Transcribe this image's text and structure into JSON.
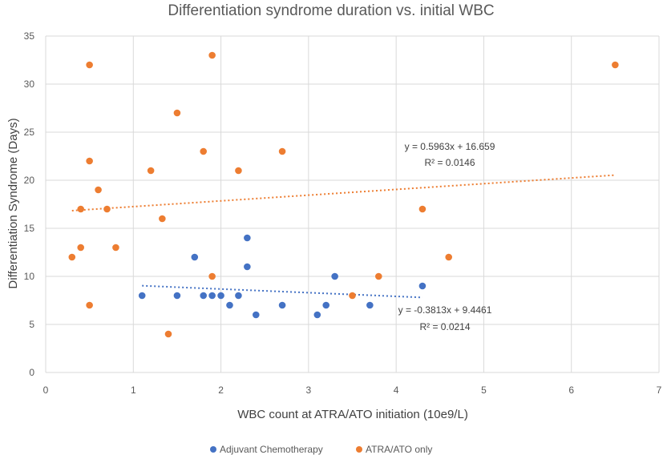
{
  "chart_data": {
    "type": "scatter",
    "title": "Differentiation syndrome duration vs. initial WBC",
    "xlabel": "WBC count  at ATRA/ATO initiation (10e9/L)",
    "ylabel": "Differentiation Syndrome  (Days)",
    "xlim": [
      0,
      7
    ],
    "ylim": [
      0,
      35
    ],
    "xticks": [
      "0",
      "1",
      "2",
      "3",
      "4",
      "5",
      "6",
      "7"
    ],
    "yticks": [
      "0",
      "5",
      "10",
      "15",
      "20",
      "25",
      "30",
      "35"
    ],
    "grid": "vertical and horizontal",
    "legend_position": "bottom",
    "series": [
      {
        "name": "Adjuvant Chemotherapy",
        "color": "#4472C4",
        "x": [
          1.1,
          1.5,
          1.7,
          1.8,
          1.9,
          2.0,
          2.1,
          2.2,
          2.3,
          2.3,
          2.4,
          2.7,
          3.1,
          3.2,
          3.3,
          3.7,
          4.3
        ],
        "y": [
          8,
          8,
          12,
          8,
          8,
          8,
          7,
          8,
          14,
          11,
          6,
          7,
          6,
          7,
          10,
          7,
          9
        ],
        "trendline": {
          "slope": -0.3813,
          "intercept": 9.4461,
          "x_range": [
            1.1,
            4.3
          ],
          "equation": "y = -0.3813x + 9.4461",
          "r2": "R² = 0.0214"
        }
      },
      {
        "name": "ATRA/ATO only",
        "color": "#ED7D31",
        "x": [
          0.3,
          0.4,
          0.4,
          0.5,
          0.5,
          0.5,
          0.6,
          0.7,
          0.8,
          1.2,
          1.33,
          1.4,
          1.5,
          1.8,
          1.9,
          1.9,
          2.2,
          2.7,
          3.5,
          3.8,
          4.3,
          4.6,
          6.5
        ],
        "y": [
          12,
          17,
          13,
          32,
          22,
          7,
          19,
          17,
          13,
          21,
          16,
          4,
          27,
          23,
          33,
          10,
          21,
          23,
          8,
          10,
          17,
          12,
          32
        ],
        "trendline": {
          "slope": 0.5963,
          "intercept": 16.659,
          "x_range": [
            0.3,
            6.5
          ],
          "equation": "y = 0.5963x + 16.659",
          "r2": "R² = 0.0146"
        }
      }
    ]
  }
}
